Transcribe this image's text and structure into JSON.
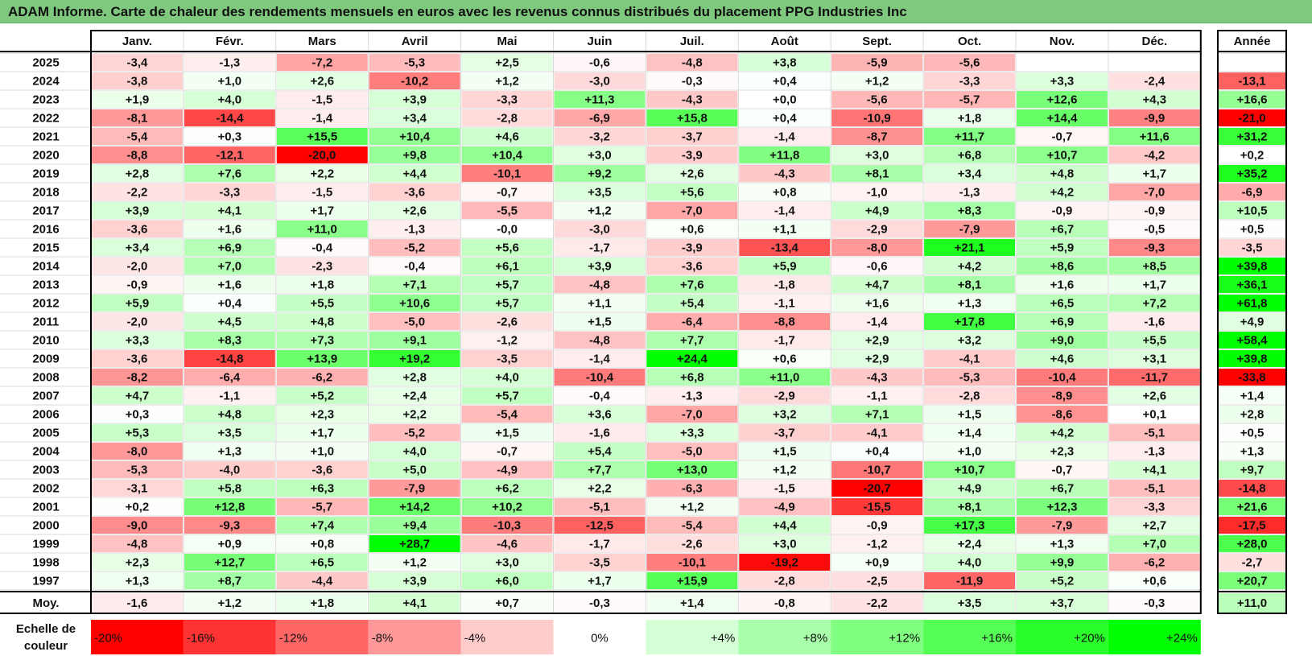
{
  "title": "ADAM Informe. Carte de chaleur des rendements mensuels en euros avec les revenus connus distribués du placement PPG Industries Inc",
  "chart_data": {
    "type": "heatmap",
    "title": "ADAM Informe. Carte de chaleur des rendements mensuels en euros avec les revenus connus distribués du placement PPG Industries Inc",
    "months": [
      "Janv.",
      "Févr.",
      "Mars",
      "Avril",
      "Mai",
      "Juin",
      "Juil.",
      "Août",
      "Sept.",
      "Oct.",
      "Nov.",
      "Déc."
    ],
    "year_header": "Année",
    "rows": [
      {
        "year": "2025",
        "values": [
          -3.4,
          -1.3,
          -7.2,
          -5.3,
          2.5,
          -0.6,
          -4.8,
          3.8,
          -5.9,
          -5.6,
          null,
          null
        ],
        "annual": null
      },
      {
        "year": "2024",
        "values": [
          -3.8,
          1.0,
          2.6,
          -10.2,
          1.2,
          -3.0,
          -0.3,
          0.4,
          1.2,
          -3.3,
          3.3,
          -2.4
        ],
        "annual": -13.1
      },
      {
        "year": "2023",
        "values": [
          1.9,
          4.0,
          -1.5,
          3.9,
          -3.3,
          11.3,
          -4.3,
          0.0,
          -5.6,
          -5.7,
          12.6,
          4.3
        ],
        "annual": 16.6
      },
      {
        "year": "2022",
        "values": [
          -8.1,
          -14.4,
          -1.4,
          3.4,
          -2.8,
          -6.9,
          15.8,
          0.4,
          -10.9,
          1.8,
          14.4,
          -9.9
        ],
        "annual": -21.0
      },
      {
        "year": "2021",
        "values": [
          -5.4,
          0.3,
          15.5,
          10.4,
          4.6,
          -3.2,
          -3.7,
          -1.4,
          -8.7,
          11.7,
          -0.7,
          11.6
        ],
        "annual": 31.2
      },
      {
        "year": "2020",
        "values": [
          -8.8,
          -12.1,
          -20.0,
          9.8,
          10.4,
          3.0,
          -3.9,
          11.8,
          3.0,
          6.8,
          10.7,
          -4.2
        ],
        "annual": 0.2
      },
      {
        "year": "2019",
        "values": [
          2.8,
          7.6,
          2.2,
          4.4,
          -10.1,
          9.2,
          2.6,
          -4.3,
          8.1,
          3.4,
          4.8,
          1.7
        ],
        "annual": 35.2
      },
      {
        "year": "2018",
        "values": [
          -2.2,
          -3.3,
          -1.5,
          -3.6,
          -0.7,
          3.5,
          5.6,
          0.8,
          -1.0,
          -1.3,
          4.2,
          -7.0
        ],
        "annual": -6.9
      },
      {
        "year": "2017",
        "values": [
          3.9,
          4.1,
          1.7,
          2.6,
          -5.5,
          1.2,
          -7.0,
          -1.4,
          4.9,
          8.3,
          -0.9,
          -0.9
        ],
        "annual": 10.5
      },
      {
        "year": "2016",
        "values": [
          -3.6,
          1.6,
          11.0,
          -1.3,
          -0.0,
          -3.0,
          0.6,
          1.1,
          -2.9,
          -7.9,
          6.7,
          -0.5
        ],
        "annual": 0.5
      },
      {
        "year": "2015",
        "values": [
          3.4,
          6.9,
          -0.4,
          -5.2,
          5.6,
          -1.7,
          -3.9,
          -13.4,
          -8.0,
          21.1,
          5.9,
          -9.3
        ],
        "annual": -3.5
      },
      {
        "year": "2014",
        "values": [
          -2.0,
          7.0,
          -2.3,
          -0.4,
          6.1,
          3.9,
          -3.6,
          5.9,
          -0.6,
          4.2,
          8.6,
          8.5
        ],
        "annual": 39.8
      },
      {
        "year": "2013",
        "values": [
          -0.9,
          1.6,
          1.8,
          7.1,
          5.7,
          -4.8,
          7.6,
          -1.8,
          4.7,
          8.1,
          1.6,
          1.7
        ],
        "annual": 36.1
      },
      {
        "year": "2012",
        "values": [
          5.9,
          0.4,
          5.5,
          10.6,
          5.7,
          1.1,
          5.4,
          -1.1,
          1.6,
          1.3,
          6.5,
          7.2
        ],
        "annual": 61.8
      },
      {
        "year": "2011",
        "values": [
          -2.0,
          4.5,
          4.8,
          -5.0,
          -2.6,
          1.5,
          -6.4,
          -8.8,
          -1.4,
          17.8,
          6.9,
          -1.6
        ],
        "annual": 4.9
      },
      {
        "year": "2010",
        "values": [
          3.3,
          8.3,
          7.3,
          9.1,
          -1.2,
          -4.8,
          7.7,
          -1.7,
          2.9,
          3.2,
          9.0,
          5.5
        ],
        "annual": 58.4
      },
      {
        "year": "2009",
        "values": [
          -3.6,
          -14.8,
          13.9,
          19.2,
          -3.5,
          -1.4,
          24.4,
          0.6,
          2.9,
          -4.1,
          4.6,
          3.1
        ],
        "annual": 39.8
      },
      {
        "year": "2008",
        "values": [
          -8.2,
          -6.4,
          -6.2,
          2.8,
          4.0,
          -10.4,
          6.8,
          11.0,
          -4.3,
          -5.3,
          -10.4,
          -11.7
        ],
        "annual": -33.8
      },
      {
        "year": "2007",
        "values": [
          4.7,
          -1.1,
          5.2,
          2.4,
          5.7,
          -0.4,
          -1.3,
          -2.9,
          -1.1,
          -2.8,
          -8.9,
          2.6
        ],
        "annual": 1.4
      },
      {
        "year": "2006",
        "values": [
          0.3,
          4.8,
          2.3,
          2.2,
          -5.4,
          3.6,
          -7.0,
          3.2,
          7.1,
          1.5,
          -8.6,
          0.1
        ],
        "annual": 2.8
      },
      {
        "year": "2005",
        "values": [
          5.3,
          3.5,
          1.7,
          -5.2,
          1.5,
          -1.6,
          3.3,
          -3.7,
          -4.1,
          1.4,
          4.2,
          -5.1
        ],
        "annual": 0.5
      },
      {
        "year": "2004",
        "values": [
          -8.0,
          1.3,
          1.0,
          4.0,
          -0.7,
          5.4,
          -5.0,
          1.5,
          0.4,
          1.0,
          2.3,
          -1.3
        ],
        "annual": 1.3
      },
      {
        "year": "2003",
        "values": [
          -5.3,
          -4.0,
          -3.6,
          5.0,
          -4.9,
          7.7,
          13.0,
          1.2,
          -10.7,
          10.7,
          -0.7,
          4.1
        ],
        "annual": 9.7
      },
      {
        "year": "2002",
        "values": [
          -3.1,
          5.8,
          6.3,
          -7.9,
          6.2,
          2.2,
          -6.3,
          -1.5,
          -20.7,
          4.9,
          6.7,
          -5.1
        ],
        "annual": -14.8
      },
      {
        "year": "2001",
        "values": [
          0.2,
          12.8,
          -5.7,
          14.2,
          10.2,
          -5.1,
          1.2,
          -4.9,
          -15.5,
          8.1,
          12.3,
          -3.3
        ],
        "annual": 21.6
      },
      {
        "year": "2000",
        "values": [
          -9.0,
          -9.3,
          7.4,
          9.4,
          -10.3,
          -12.5,
          -5.4,
          4.4,
          -0.9,
          17.3,
          -7.9,
          2.7
        ],
        "annual": -17.5
      },
      {
        "year": "1999",
        "values": [
          -4.8,
          0.9,
          0.8,
          28.7,
          -4.6,
          -1.7,
          -2.6,
          3.0,
          -1.2,
          2.4,
          1.3,
          7.0
        ],
        "annual": 28.0
      },
      {
        "year": "1998",
        "values": [
          2.3,
          12.7,
          6.5,
          1.2,
          3.0,
          -3.5,
          -10.1,
          -19.2,
          0.9,
          4.0,
          9.9,
          -6.2
        ],
        "annual": -2.7
      },
      {
        "year": "1997",
        "values": [
          1.3,
          8.7,
          -4.4,
          3.9,
          6.0,
          1.7,
          15.9,
          -2.8,
          -2.5,
          -11.9,
          5.2,
          0.6
        ],
        "annual": 20.7
      }
    ],
    "average": {
      "label": "Moy.",
      "values": [
        -1.6,
        1.2,
        1.8,
        4.1,
        0.7,
        -0.3,
        1.4,
        -0.8,
        -2.2,
        3.5,
        3.7,
        -0.3
      ],
      "annual": 11.0
    },
    "color_scale": {
      "label_line1": "Echelle de",
      "label_line2": "couleur",
      "stops": [
        {
          "value": -20,
          "label": "-20%"
        },
        {
          "value": -16,
          "label": "-16%"
        },
        {
          "value": -12,
          "label": "-12%"
        },
        {
          "value": -8,
          "label": "-8%"
        },
        {
          "value": -4,
          "label": "-4%"
        },
        {
          "value": 0,
          "label": "0%"
        },
        {
          "value": 4,
          "label": "+4%"
        },
        {
          "value": 8,
          "label": "+8%"
        },
        {
          "value": 12,
          "label": "+12%"
        },
        {
          "value": 16,
          "label": "+16%"
        },
        {
          "value": 20,
          "label": "+20%"
        },
        {
          "value": 24,
          "label": "+24%"
        }
      ],
      "negative_color": "#ff0000",
      "neutral_color": "#ffffff",
      "positive_color": "#00ff00"
    }
  }
}
